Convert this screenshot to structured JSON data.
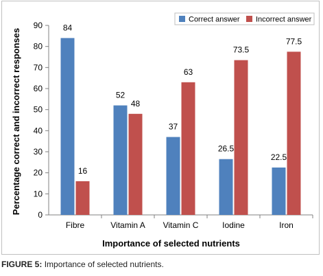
{
  "caption": {
    "label": "FIGURE 5:",
    "text": "Importance of selected nutrients."
  },
  "chart_data": {
    "type": "bar",
    "categories": [
      "Fibre",
      "Vitamin A",
      "Vitamin C",
      "Iodine",
      "Iron"
    ],
    "series": [
      {
        "name": "Correct answer",
        "color": "#4f81bd",
        "values": [
          84,
          52,
          37,
          26.5,
          22.5
        ]
      },
      {
        "name": "Incorrect answer",
        "color": "#c0504d",
        "values": [
          16,
          48,
          63,
          73.5,
          77.5
        ]
      }
    ],
    "xlabel": "Importance of selected nutrients",
    "ylabel": "Percentage correct and incorrect responses",
    "ylim": [
      0,
      90
    ],
    "yticks": [
      0,
      10,
      20,
      30,
      40,
      50,
      60,
      70,
      80,
      90
    ],
    "ytick_labels": [
      "0",
      "10",
      "20",
      "30",
      "40",
      "50",
      "60",
      "70",
      "80",
      "90"
    ],
    "data_labels": [
      [
        "84",
        "52",
        "37",
        "26.5",
        "22.5"
      ],
      [
        "16",
        "48",
        "63",
        "73.5",
        "77.5"
      ]
    ],
    "legend_position": "top-right",
    "grid": false
  }
}
